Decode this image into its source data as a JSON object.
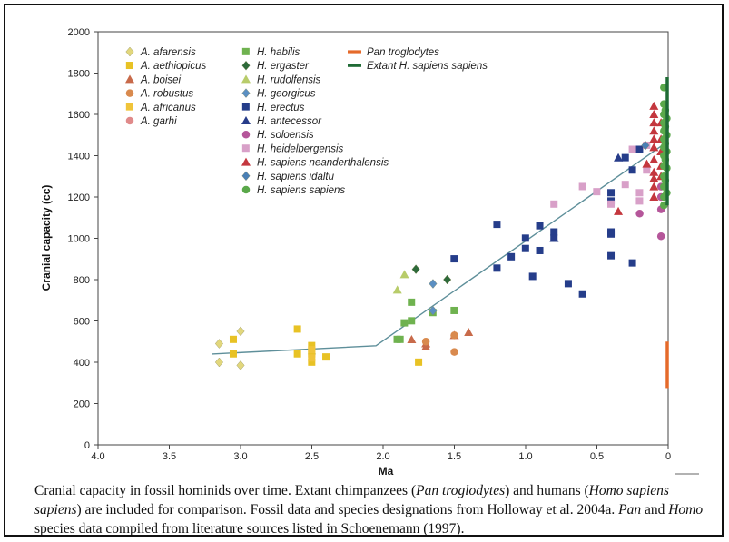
{
  "caption": {
    "t1": "Cranial capacity in fossil hominids over time. Extant chimpanzees (",
    "t2": "Pan troglodytes",
    "t3": ") and humans (",
    "t4": "Homo sapiens sapiens",
    "t5": ") are included for comparison. Fossil data and species designations from Holloway et al. 2004a. ",
    "t6": "Pan",
    "t7": " and ",
    "t8": "Homo",
    "t9": " species data compiled from literature sources listed in Schoenemann (1997)."
  },
  "chart_data": {
    "type": "scatter",
    "xlabel": "Ma",
    "ylabel": "Cranial capacity (cc)",
    "xlim": [
      4.0,
      0
    ],
    "ylim": [
      0,
      2000
    ],
    "x_ticks": [
      "4.0",
      "3.5",
      "3.0",
      "2.5",
      "2.0",
      "1.5",
      "1.0",
      "0.5",
      "0"
    ],
    "y_ticks": [
      "0",
      "200",
      "400",
      "600",
      "800",
      "1000",
      "1200",
      "1400",
      "1600",
      "1800",
      "2000"
    ],
    "grid": false,
    "legend_position": "top-left",
    "series": [
      {
        "name": "A. afarensis",
        "marker": "diamond",
        "color": "#e2d77c",
        "points": [
          [
            3.15,
            490
          ],
          [
            3.0,
            550
          ],
          [
            3.15,
            400
          ],
          [
            3.0,
            385
          ],
          [
            2.5,
            440
          ]
        ]
      },
      {
        "name": "A. aethiopicus",
        "marker": "square",
        "color": "#e8c224",
        "points": [
          [
            2.6,
            560
          ],
          [
            2.5,
            480
          ],
          [
            2.5,
            440
          ],
          [
            2.5,
            400
          ],
          [
            2.6,
            440
          ],
          [
            2.4,
            425
          ],
          [
            3.05,
            510
          ],
          [
            3.05,
            440
          ],
          [
            1.75,
            400
          ]
        ]
      },
      {
        "name": "A. boisei",
        "marker": "triangle",
        "color": "#c86a4a",
        "points": [
          [
            1.8,
            510
          ],
          [
            1.7,
            490
          ],
          [
            1.7,
            475
          ],
          [
            1.4,
            545
          ],
          [
            1.5,
            530
          ]
        ]
      },
      {
        "name": "A. robustus",
        "marker": "circle",
        "color": "#d98a4e",
        "points": [
          [
            1.5,
            450
          ],
          [
            1.5,
            530
          ],
          [
            1.7,
            500
          ]
        ]
      },
      {
        "name": "A. africanus",
        "marker": "square",
        "color": "#f0c43a",
        "points": [
          [
            2.5,
            460
          ],
          [
            2.5,
            420
          ]
        ]
      },
      {
        "name": "A. garhi",
        "marker": "circle",
        "color": "#e08a8a",
        "points": []
      },
      {
        "name": "H. habilis",
        "marker": "square",
        "color": "#6fb24f",
        "points": [
          [
            1.8,
            690
          ],
          [
            1.65,
            640
          ],
          [
            1.8,
            600
          ],
          [
            1.85,
            590
          ],
          [
            1.9,
            510
          ],
          [
            1.88,
            510
          ],
          [
            1.5,
            650
          ]
        ]
      },
      {
        "name": "H. ergaster",
        "marker": "diamond",
        "color": "#2d6a3a",
        "points": [
          [
            1.77,
            850
          ],
          [
            1.55,
            800
          ]
        ]
      },
      {
        "name": "H. rudolfensis",
        "marker": "triangle",
        "color": "#b8cc6a",
        "points": [
          [
            1.85,
            825
          ],
          [
            1.9,
            750
          ]
        ]
      },
      {
        "name": "H. georgicus",
        "marker": "diamond",
        "color": "#5b8fc2",
        "points": [
          [
            1.65,
            780
          ],
          [
            1.65,
            650
          ]
        ]
      },
      {
        "name": "H. erectus",
        "marker": "square",
        "color": "#253d8a",
        "points": [
          [
            1.2,
            1067
          ],
          [
            1.0,
            1000
          ],
          [
            1.0,
            950
          ],
          [
            0.9,
            1060
          ],
          [
            0.9,
            940
          ],
          [
            0.8,
            1030
          ],
          [
            0.8,
            1000
          ],
          [
            1.1,
            910
          ],
          [
            1.2,
            855
          ],
          [
            1.5,
            900
          ],
          [
            0.95,
            815
          ],
          [
            0.7,
            780
          ],
          [
            0.6,
            730
          ],
          [
            0.4,
            1220
          ],
          [
            0.4,
            1180
          ],
          [
            0.4,
            1030
          ],
          [
            0.4,
            1020
          ],
          [
            0.4,
            915
          ],
          [
            0.25,
            880
          ],
          [
            0.25,
            1330
          ],
          [
            0.3,
            1390
          ],
          [
            0.2,
            1430
          ]
        ]
      },
      {
        "name": "H. antecessor",
        "marker": "triangle",
        "color": "#273c8a",
        "points": [
          [
            0.8,
            1000
          ],
          [
            0.35,
            1390
          ]
        ]
      },
      {
        "name": "H. soloensis",
        "marker": "circle",
        "color": "#b5569a",
        "points": [
          [
            0.05,
            1250
          ],
          [
            0.05,
            1200
          ],
          [
            0.05,
            1140
          ],
          [
            0.05,
            1010
          ],
          [
            0.2,
            1120
          ]
        ]
      },
      {
        "name": "H. heidelbergensis",
        "marker": "square",
        "color": "#d8a0c8",
        "points": [
          [
            0.8,
            1165
          ],
          [
            0.6,
            1250
          ],
          [
            0.5,
            1225
          ],
          [
            0.4,
            1165
          ],
          [
            0.25,
            1430
          ],
          [
            0.15,
            1450
          ],
          [
            0.15,
            1330
          ],
          [
            0.3,
            1260
          ],
          [
            0.2,
            1220
          ],
          [
            0.2,
            1180
          ]
        ]
      },
      {
        "name": "H. sapiens neanderthalensis",
        "marker": "triangle",
        "color": "#c4373e",
        "points": [
          [
            0.1,
            1640
          ],
          [
            0.1,
            1600
          ],
          [
            0.1,
            1560
          ],
          [
            0.1,
            1520
          ],
          [
            0.1,
            1480
          ],
          [
            0.1,
            1440
          ],
          [
            0.1,
            1380
          ],
          [
            0.1,
            1320
          ],
          [
            0.1,
            1290
          ],
          [
            0.1,
            1250
          ],
          [
            0.1,
            1200
          ],
          [
            0.05,
            1560
          ],
          [
            0.05,
            1480
          ],
          [
            0.05,
            1420
          ],
          [
            0.05,
            1350
          ],
          [
            0.05,
            1300
          ],
          [
            0.15,
            1360
          ],
          [
            0.35,
            1130
          ]
        ]
      },
      {
        "name": "H. sapiens idaltu",
        "marker": "diamond",
        "color": "#4a7fb5",
        "points": [
          [
            0.16,
            1450
          ]
        ]
      },
      {
        "name": "H. sapiens sapiens",
        "marker": "circle",
        "color": "#5aa84a",
        "points": [
          [
            0.03,
            1730
          ],
          [
            0.03,
            1650
          ],
          [
            0.03,
            1600
          ],
          [
            0.03,
            1560
          ],
          [
            0.03,
            1520
          ],
          [
            0.03,
            1480
          ],
          [
            0.03,
            1440
          ],
          [
            0.03,
            1400
          ],
          [
            0.03,
            1350
          ],
          [
            0.03,
            1300
          ],
          [
            0.03,
            1250
          ],
          [
            0.03,
            1200
          ],
          [
            0.03,
            1160
          ],
          [
            0.02,
            1620
          ],
          [
            0.02,
            1540
          ],
          [
            0.02,
            1460
          ],
          [
            0.02,
            1380
          ],
          [
            0.02,
            1280
          ],
          [
            0.01,
            1580
          ],
          [
            0.01,
            1500
          ],
          [
            0.01,
            1420
          ],
          [
            0.01,
            1340
          ],
          [
            0.01,
            1220
          ]
        ]
      },
      {
        "name": "Pan troglodytes",
        "marker": "bar",
        "color": "#e56a2a",
        "range": [
          275,
          500
        ]
      },
      {
        "name": "Extant H. sapiens sapiens",
        "marker": "bar",
        "color": "#1f6b35",
        "range": [
          1160,
          1780
        ]
      }
    ],
    "trend_line": [
      [
        3.2,
        440
      ],
      [
        2.05,
        480
      ],
      [
        0.0,
        1470
      ]
    ],
    "trend_color": "#5e8f9a"
  }
}
